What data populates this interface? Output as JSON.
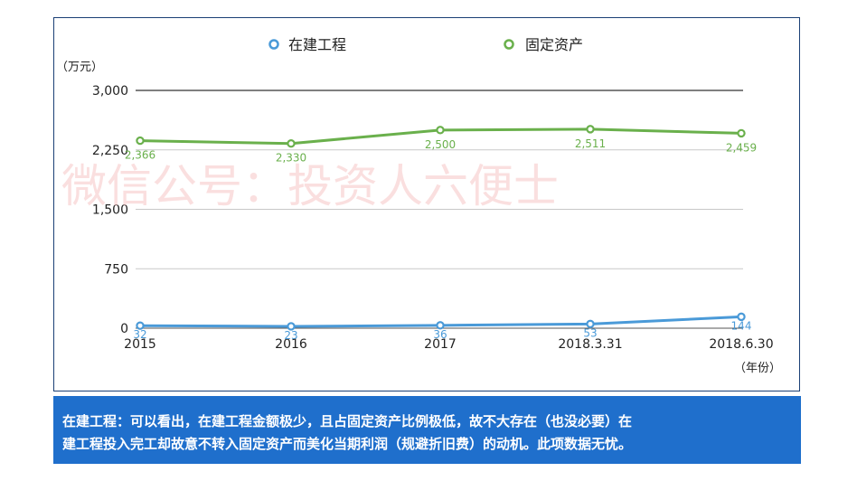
{
  "chart_data": {
    "type": "line",
    "categories": [
      "2015",
      "2016",
      "2017",
      "2018.3.31",
      "2018.6.30"
    ],
    "series": [
      {
        "name": "在建工程",
        "color": "#4a9ad8",
        "values": [
          32,
          23,
          36,
          53,
          144
        ]
      },
      {
        "name": "固定资产",
        "color": "#6ab04c",
        "values": [
          2366,
          2330,
          2500,
          2511,
          2459
        ]
      }
    ],
    "value_labels": {
      "在建工程": [
        "32",
        "23",
        "36",
        "53",
        "144"
      ],
      "固定资产": [
        "2,366",
        "2,330",
        "2,500",
        "2,511",
        "2,459"
      ]
    },
    "ylim": [
      0,
      3000
    ],
    "yticks": [
      0,
      750,
      1500,
      2250,
      3000
    ],
    "ytick_labels": [
      "0",
      "750",
      "1,500",
      "2,250",
      "3,000"
    ],
    "y_unit": "（万元）",
    "x_unit": "（年份）",
    "legend_position": "top",
    "grid": "horizontal"
  },
  "watermark": "微信公号：投资人六便士",
  "note": {
    "line1": "在建工程：可以看出，在建工程金额极少，且占固定资产比例极低，故不大存在（也没必要）在",
    "line2": "建工程投入完工却故意不转入固定资产而美化当期利润（规避折旧费）的动机。此项数据无忧。"
  }
}
